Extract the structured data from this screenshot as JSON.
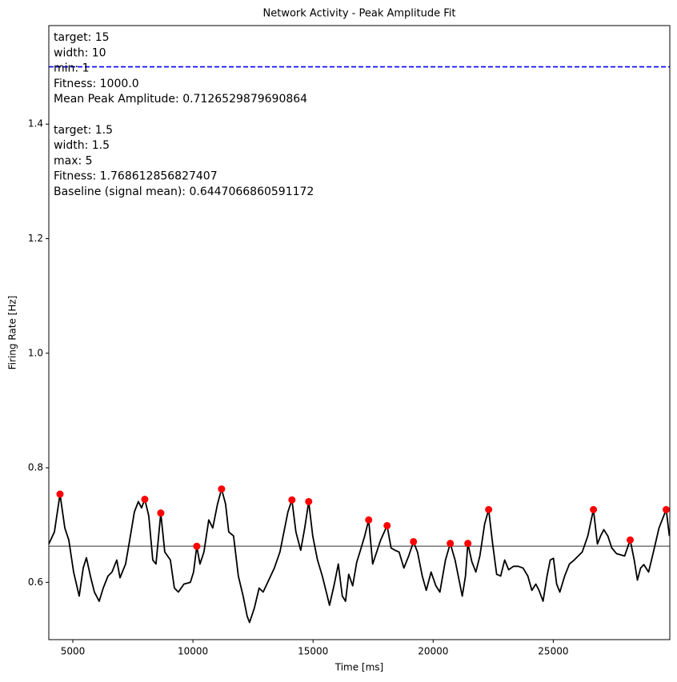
{
  "chart_data": {
    "type": "line",
    "title": "Network Activity - Peak Amplitude Fit",
    "x_label": "Time [ms]",
    "y_label": "Firing Rate [Hz]",
    "xlim": [
      4000,
      29850
    ],
    "ylim": [
      0.5,
      1.572
    ],
    "xticks": [
      5000,
      10000,
      15000,
      20000,
      25000
    ],
    "yticks": [
      {
        "value": 0.6,
        "label": "0.6"
      },
      {
        "value": 0.8,
        "label": "0.8"
      },
      {
        "value": 1.0,
        "label": "1.0"
      },
      {
        "value": 1.2,
        "label": "1.2"
      },
      {
        "value": 1.4,
        "label": "1.4"
      }
    ],
    "grid": false,
    "series": [
      {
        "color": "#000000",
        "marker": "none",
        "x": [
          4000,
          4233,
          4466,
          4666,
          4832,
          5032,
          5265,
          5431,
          5565,
          5731,
          5898,
          6097,
          6264,
          6463,
          6630,
          6830,
          6963,
          7196,
          7396,
          7562,
          7728,
          7862,
          7995,
          8161,
          8328,
          8461,
          8661,
          8827,
          9060,
          9227,
          9393,
          9626,
          9892,
          10026,
          10159,
          10292,
          10458,
          10658,
          10824,
          11024,
          11191,
          11357,
          11490,
          11690,
          11890,
          12089,
          12256,
          12356,
          12555,
          12755,
          12922,
          13155,
          13388,
          13621,
          13787,
          13954,
          14120,
          14286,
          14486,
          14653,
          14819,
          14986,
          15185,
          15385,
          15552,
          15685,
          15885,
          16051,
          16217,
          16351,
          16484,
          16650,
          16817,
          16950,
          17150,
          17316,
          17482,
          17649,
          17815,
          18082,
          18248,
          18415,
          18581,
          18781,
          18981,
          19180,
          19347,
          19546,
          19713,
          19913,
          20112,
          20279,
          20512,
          20712,
          20911,
          21078,
          21211,
          21344,
          21444,
          21610,
          21777,
          21943,
          22143,
          22310,
          22476,
          22643,
          22809,
          22976,
          23142,
          23342,
          23542,
          23741,
          23941,
          24107,
          24274,
          24407,
          24574,
          24740,
          24873,
          25007,
          25140,
          25273,
          25473,
          25672,
          25872,
          26205,
          26438,
          26671,
          26837,
          26970,
          27103,
          27270,
          27436,
          27636,
          27969,
          28202,
          28369,
          28502,
          28635,
          28769,
          28968,
          29168,
          29401,
          29700,
          29833
        ],
        "values": [
          0.667,
          0.688,
          0.754,
          0.695,
          0.674,
          0.618,
          0.576,
          0.625,
          0.643,
          0.611,
          0.583,
          0.567,
          0.59,
          0.611,
          0.618,
          0.639,
          0.608,
          0.632,
          0.681,
          0.723,
          0.741,
          0.73,
          0.745,
          0.716,
          0.639,
          0.632,
          0.721,
          0.653,
          0.639,
          0.59,
          0.583,
          0.597,
          0.6,
          0.618,
          0.663,
          0.632,
          0.653,
          0.709,
          0.695,
          0.737,
          0.763,
          0.737,
          0.688,
          0.681,
          0.611,
          0.576,
          0.541,
          0.53,
          0.555,
          0.59,
          0.583,
          0.604,
          0.625,
          0.653,
          0.688,
          0.723,
          0.744,
          0.688,
          0.656,
          0.695,
          0.741,
          0.681,
          0.639,
          0.611,
          0.583,
          0.56,
          0.597,
          0.632,
          0.576,
          0.567,
          0.614,
          0.594,
          0.635,
          0.653,
          0.681,
          0.709,
          0.632,
          0.653,
          0.674,
          0.699,
          0.66,
          0.656,
          0.653,
          0.625,
          0.646,
          0.671,
          0.653,
          0.611,
          0.586,
          0.618,
          0.594,
          0.583,
          0.639,
          0.668,
          0.639,
          0.604,
          0.576,
          0.611,
          0.668,
          0.636,
          0.618,
          0.646,
          0.702,
          0.727,
          0.667,
          0.614,
          0.611,
          0.639,
          0.622,
          0.628,
          0.628,
          0.625,
          0.611,
          0.586,
          0.597,
          0.586,
          0.567,
          0.611,
          0.639,
          0.642,
          0.597,
          0.583,
          0.611,
          0.632,
          0.639,
          0.653,
          0.681,
          0.727,
          0.667,
          0.681,
          0.692,
          0.681,
          0.66,
          0.65,
          0.646,
          0.674,
          0.639,
          0.604,
          0.625,
          0.631,
          0.618,
          0.653,
          0.695,
          0.727,
          0.681
        ]
      },
      {
        "color": "#ff0000",
        "marker": "dot",
        "x": [
          4466,
          7995,
          8661,
          10159,
          11191,
          14120,
          14819,
          17316,
          18082,
          19180,
          20712,
          21444,
          22310,
          26671,
          28202,
          29700
        ],
        "values": [
          0.754,
          0.745,
          0.721,
          0.663,
          0.763,
          0.744,
          0.741,
          0.709,
          0.699,
          0.671,
          0.668,
          0.668,
          0.727,
          0.727,
          0.674,
          0.727
        ]
      }
    ],
    "reference_lines": [
      {
        "value": 1.5,
        "color": "#0000ff",
        "dashed": true
      },
      {
        "value": 0.663,
        "color": "#808080",
        "dashed": false
      }
    ],
    "annotations": [
      [
        "target: 15",
        "width: 10",
        "min: 1",
        "Fitness: 1000.0",
        "Mean Peak Amplitude: 0.7126529879690864"
      ],
      [
        "target: 1.5",
        "width: 1.5",
        "max: 5",
        "Fitness: 1.768612856827407",
        "Baseline (signal mean): 0.6447066860591172"
      ]
    ]
  }
}
